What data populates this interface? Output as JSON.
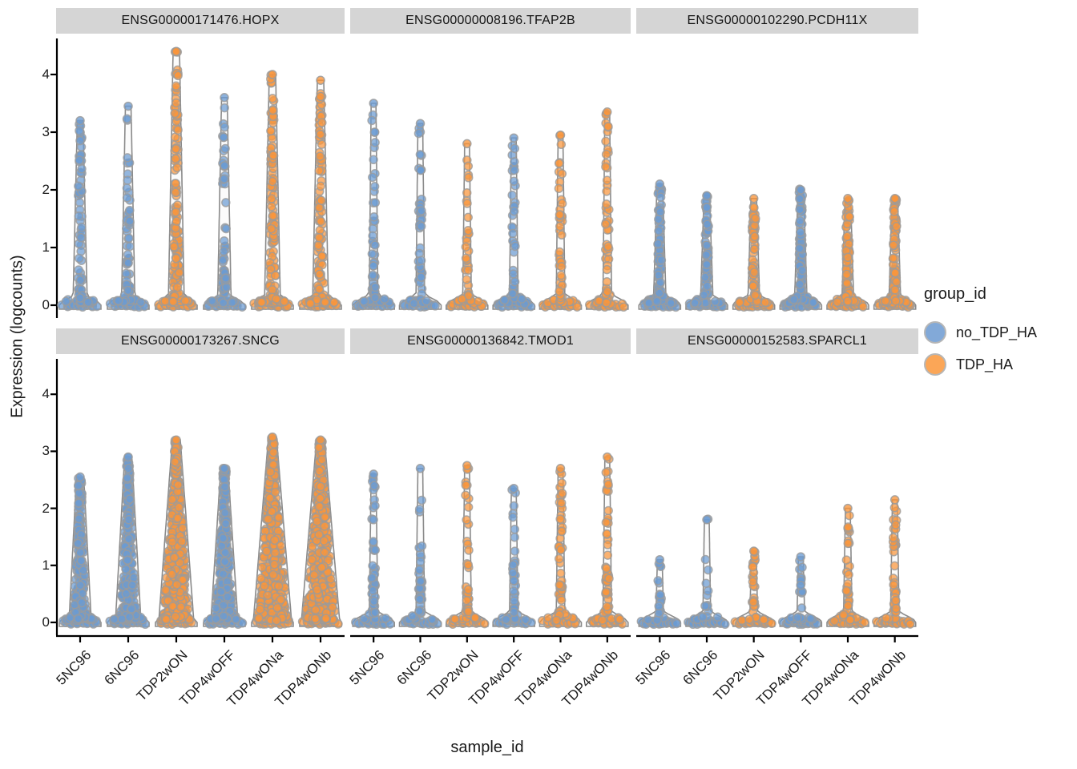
{
  "chart_data": {
    "type": "violin",
    "xlabel": "sample_id",
    "ylabel": "Expression (logcounts)",
    "y_ticks": [
      0,
      1,
      2,
      3,
      4
    ],
    "ylim": [
      0,
      4.4
    ],
    "grid": false,
    "samples": [
      "5NC96",
      "6NC96",
      "TDP2wON",
      "TDP4wOFF",
      "TDP4wONa",
      "TDP4wONb"
    ],
    "sample_groups": {
      "5NC96": "no_TDP_HA",
      "6NC96": "no_TDP_HA",
      "TDP2wON": "TDP_HA",
      "TDP4wOFF": "no_TDP_HA",
      "TDP4wONa": "TDP_HA",
      "TDP4wONb": "TDP_HA"
    },
    "colors": {
      "no_TDP_HA": "#6b9bd2",
      "TDP_HA": "#f9953b",
      "point_stroke": "#9b9b9b",
      "violin_outline": "#8a8a8a",
      "violin_fill": "#f7f7f7",
      "strip_bg": "#d5d5d5",
      "axis": "#000000"
    },
    "legend": {
      "title": "group_id",
      "position": "right",
      "items": [
        {
          "label": "no_TDP_HA",
          "color": "#7ca5d6"
        },
        {
          "label": "TDP_HA",
          "color": "#fba24f"
        }
      ]
    },
    "facets": [
      {
        "title": "ENSG00000171476.HOPX",
        "row": 0,
        "col": 0,
        "violins": [
          {
            "sample": "5NC96",
            "group": "no_TDP_HA",
            "max": 3.2,
            "n": 75,
            "n0": 16,
            "body0": 18,
            "bodyTop": 7,
            "skew": 2.6
          },
          {
            "sample": "6NC96",
            "group": "no_TDP_HA",
            "max": 3.45,
            "n": 70,
            "n0": 16,
            "body0": 17,
            "bodyTop": 7,
            "skew": 2.6
          },
          {
            "sample": "TDP2wON",
            "group": "TDP_HA",
            "max": 4.4,
            "n": 160,
            "n0": 16,
            "body0": 20,
            "bodyTop": 8,
            "skew": 2.3
          },
          {
            "sample": "TDP4wOFF",
            "group": "no_TDP_HA",
            "max": 3.6,
            "n": 80,
            "n0": 16,
            "body0": 17,
            "bodyTop": 7,
            "skew": 2.8
          },
          {
            "sample": "TDP4wONa",
            "group": "TDP_HA",
            "max": 4.0,
            "n": 130,
            "n0": 16,
            "body0": 20,
            "bodyTop": 8,
            "skew": 2.3
          },
          {
            "sample": "TDP4wONb",
            "group": "TDP_HA",
            "max": 3.9,
            "n": 120,
            "n0": 16,
            "body0": 20,
            "bodyTop": 8,
            "skew": 2.3
          }
        ]
      },
      {
        "title": "ENSG00000008196.TFAP2B",
        "row": 0,
        "col": 1,
        "violins": [
          {
            "sample": "5NC96",
            "group": "no_TDP_HA",
            "max": 3.5,
            "n": 60,
            "n0": 16,
            "body0": 11,
            "bodyTop": 6,
            "skew": 2.1
          },
          {
            "sample": "6NC96",
            "group": "no_TDP_HA",
            "max": 3.15,
            "n": 50,
            "n0": 16,
            "body0": 11,
            "bodyTop": 6,
            "skew": 2.1
          },
          {
            "sample": "TDP2wON",
            "group": "TDP_HA",
            "max": 2.8,
            "n": 40,
            "n0": 16,
            "body0": 11,
            "bodyTop": 6,
            "skew": 2.3
          },
          {
            "sample": "TDP4wOFF",
            "group": "no_TDP_HA",
            "max": 2.9,
            "n": 55,
            "n0": 16,
            "body0": 11,
            "bodyTop": 6,
            "skew": 2.0
          },
          {
            "sample": "TDP4wONa",
            "group": "TDP_HA",
            "max": 2.95,
            "n": 45,
            "n0": 16,
            "body0": 11,
            "bodyTop": 6,
            "skew": 2.2
          },
          {
            "sample": "TDP4wONb",
            "group": "TDP_HA",
            "max": 3.35,
            "n": 50,
            "n0": 16,
            "body0": 11,
            "bodyTop": 6,
            "skew": 2.3
          }
        ]
      },
      {
        "title": "ENSG00000102290.PCDH11X",
        "row": 0,
        "col": 2,
        "violins": [
          {
            "sample": "5NC96",
            "group": "no_TDP_HA",
            "max": 2.1,
            "n": 85,
            "n0": 20,
            "body0": 16,
            "bodyTop": 7,
            "skew": 1.7
          },
          {
            "sample": "6NC96",
            "group": "no_TDP_HA",
            "max": 1.9,
            "n": 80,
            "n0": 20,
            "body0": 16,
            "bodyTop": 7,
            "skew": 1.7
          },
          {
            "sample": "TDP2wON",
            "group": "TDP_HA",
            "max": 1.85,
            "n": 80,
            "n0": 20,
            "body0": 15,
            "bodyTop": 7,
            "skew": 1.7
          },
          {
            "sample": "TDP4wOFF",
            "group": "no_TDP_HA",
            "max": 2.0,
            "n": 100,
            "n0": 20,
            "body0": 16,
            "bodyTop": 7,
            "skew": 1.6
          },
          {
            "sample": "TDP4wONa",
            "group": "TDP_HA",
            "max": 1.85,
            "n": 90,
            "n0": 20,
            "body0": 15,
            "bodyTop": 7,
            "skew": 1.7
          },
          {
            "sample": "TDP4wONb",
            "group": "TDP_HA",
            "max": 1.85,
            "n": 90,
            "n0": 20,
            "body0": 15,
            "bodyTop": 7,
            "skew": 1.7
          }
        ]
      },
      {
        "title": "ENSG00000173267.SNCG",
        "row": 1,
        "col": 0,
        "violins": [
          {
            "sample": "5NC96",
            "group": "no_TDP_HA",
            "max": 2.55,
            "n": 220,
            "n0": 16,
            "body0": 28,
            "bodyTop": 9,
            "skew": 1.7
          },
          {
            "sample": "6NC96",
            "group": "no_TDP_HA",
            "max": 2.9,
            "n": 260,
            "n0": 16,
            "body0": 32,
            "bodyTop": 9,
            "skew": 1.7
          },
          {
            "sample": "TDP2wON",
            "group": "TDP_HA",
            "max": 3.2,
            "n": 430,
            "n0": 16,
            "body0": 44,
            "bodyTop": 10,
            "skew": 1.5
          },
          {
            "sample": "TDP4wOFF",
            "group": "no_TDP_HA",
            "max": 2.7,
            "n": 280,
            "n0": 16,
            "body0": 34,
            "bodyTop": 9,
            "skew": 1.6
          },
          {
            "sample": "TDP4wONa",
            "group": "TDP_HA",
            "max": 3.25,
            "n": 460,
            "n0": 16,
            "body0": 48,
            "bodyTop": 10,
            "skew": 1.5
          },
          {
            "sample": "TDP4wONb",
            "group": "TDP_HA",
            "max": 3.2,
            "n": 450,
            "n0": 16,
            "body0": 48,
            "bodyTop": 10,
            "skew": 1.5
          }
        ]
      },
      {
        "title": "ENSG00000136842.TMOD1",
        "row": 1,
        "col": 1,
        "violins": [
          {
            "sample": "5NC96",
            "group": "no_TDP_HA",
            "max": 2.6,
            "n": 45,
            "n0": 16,
            "body0": 11,
            "bodyTop": 6,
            "skew": 2.0
          },
          {
            "sample": "6NC96",
            "group": "no_TDP_HA",
            "max": 2.7,
            "n": 38,
            "n0": 16,
            "body0": 11,
            "bodyTop": 6,
            "skew": 2.3
          },
          {
            "sample": "TDP2wON",
            "group": "TDP_HA",
            "max": 2.75,
            "n": 42,
            "n0": 16,
            "body0": 11,
            "bodyTop": 6,
            "skew": 2.1
          },
          {
            "sample": "TDP4wOFF",
            "group": "no_TDP_HA",
            "max": 2.35,
            "n": 40,
            "n0": 16,
            "body0": 11,
            "bodyTop": 6,
            "skew": 2.1
          },
          {
            "sample": "TDP4wONa",
            "group": "TDP_HA",
            "max": 2.7,
            "n": 55,
            "n0": 16,
            "body0": 11,
            "bodyTop": 6,
            "skew": 1.9
          },
          {
            "sample": "TDP4wONb",
            "group": "TDP_HA",
            "max": 2.9,
            "n": 55,
            "n0": 16,
            "body0": 11,
            "bodyTop": 6,
            "skew": 2.0
          }
        ]
      },
      {
        "title": "ENSG00000152583.SPARCL1",
        "row": 1,
        "col": 2,
        "violins": [
          {
            "sample": "5NC96",
            "group": "no_TDP_HA",
            "max": 1.1,
            "n": 18,
            "n0": 22,
            "body0": 10,
            "bodyTop": 6,
            "skew": 1.8
          },
          {
            "sample": "6NC96",
            "group": "no_TDP_HA",
            "max": 1.8,
            "n": 16,
            "n0": 22,
            "body0": 10,
            "bodyTop": 6,
            "skew": 2.2
          },
          {
            "sample": "TDP2wON",
            "group": "TDP_HA",
            "max": 1.25,
            "n": 28,
            "n0": 22,
            "body0": 10,
            "bodyTop": 6,
            "skew": 1.8
          },
          {
            "sample": "TDP4wOFF",
            "group": "no_TDP_HA",
            "max": 1.15,
            "n": 22,
            "n0": 22,
            "body0": 10,
            "bodyTop": 6,
            "skew": 1.8
          },
          {
            "sample": "TDP4wONa",
            "group": "TDP_HA",
            "max": 2.0,
            "n": 40,
            "n0": 22,
            "body0": 11,
            "bodyTop": 6,
            "skew": 2.0
          },
          {
            "sample": "TDP4wONb",
            "group": "TDP_HA",
            "max": 2.15,
            "n": 35,
            "n0": 22,
            "body0": 11,
            "bodyTop": 6,
            "skew": 2.0
          }
        ]
      }
    ]
  }
}
